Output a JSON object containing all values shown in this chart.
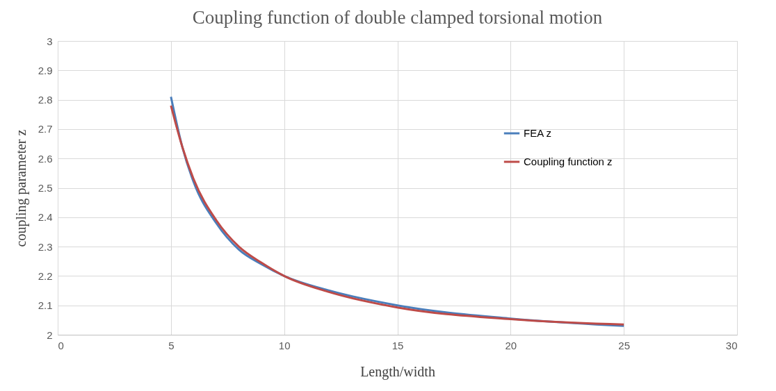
{
  "chart_data": {
    "type": "line",
    "title": "Coupling function of double clamped torsional motion",
    "xlabel": "Length/width",
    "ylabel": "coupling parameter z",
    "series": [
      {
        "name": "FEA z",
        "color": "#4a7ebb",
        "x": [
          5,
          5.5,
          6,
          7,
          8,
          9,
          10,
          12,
          15,
          20,
          25
        ],
        "values": [
          2.81,
          2.64,
          2.52,
          2.38,
          2.29,
          2.24,
          2.2,
          2.15,
          2.1,
          2.055,
          2.03
        ]
      },
      {
        "name": "Coupling function z",
        "color": "#be4b48",
        "x": [
          5,
          5.5,
          6,
          7,
          8,
          9,
          10,
          12,
          15,
          20,
          25
        ],
        "values": [
          2.78,
          2.64,
          2.53,
          2.39,
          2.3,
          2.245,
          2.2,
          2.145,
          2.093,
          2.053,
          2.035
        ]
      }
    ],
    "xlim": [
      0,
      30
    ],
    "xticks": [
      0,
      5,
      10,
      15,
      20,
      25,
      30
    ],
    "ylim": [
      2,
      3
    ],
    "yticks": [
      {
        "value": 2,
        "label": "2"
      },
      2.1,
      2.2,
      2.3,
      2.4,
      2.5,
      2.6,
      2.7,
      2.8,
      2.9,
      {
        "value": 3,
        "label": "3"
      }
    ],
    "grid": true,
    "legend": "right",
    "marker": "none",
    "line_style": "solid"
  }
}
